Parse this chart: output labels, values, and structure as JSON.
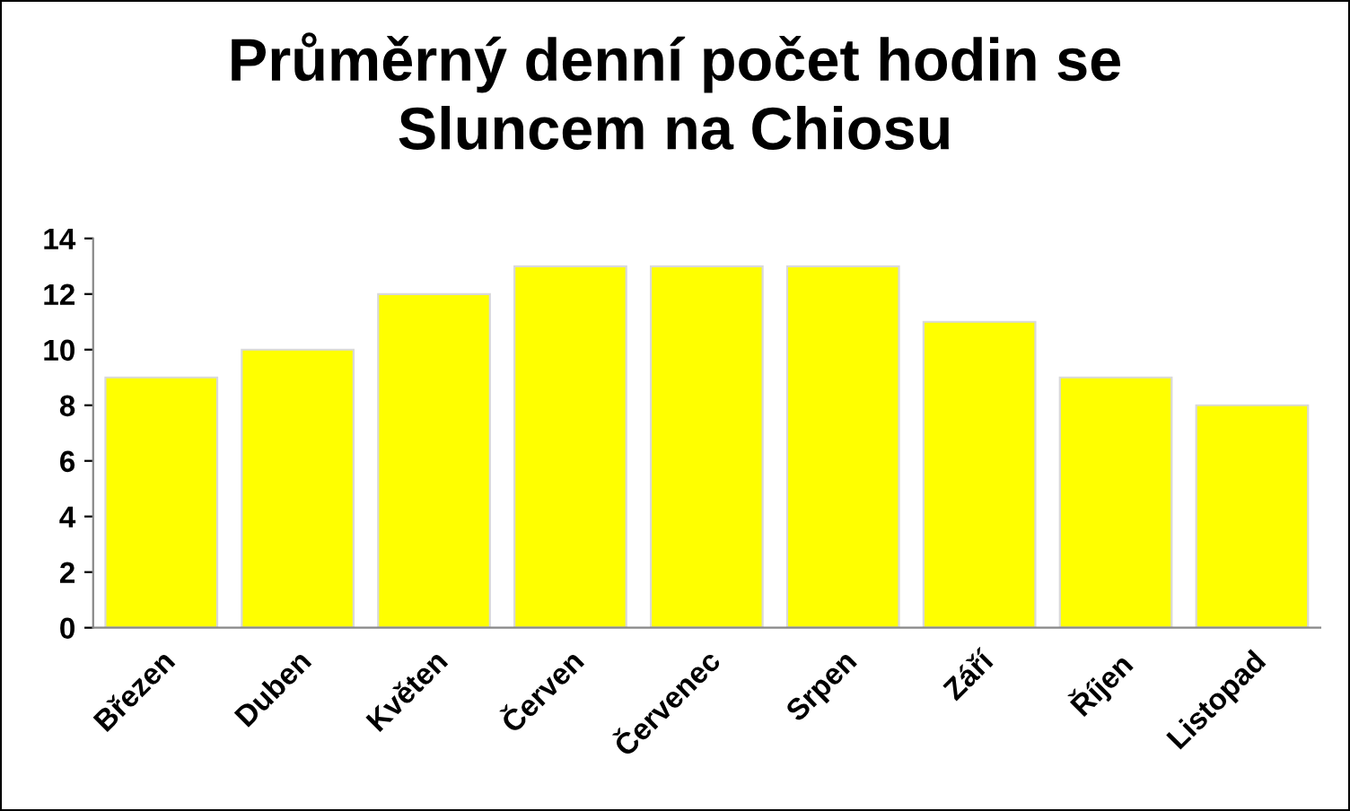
{
  "chart_data": {
    "type": "bar",
    "title": "Průměrný denní počet hodin se\nSluncem na Chiosu",
    "categories": [
      "Březen",
      "Duben",
      "Květen",
      "Červen",
      "Červenec",
      "Srpen",
      "Září",
      "Říjen",
      "Listopad"
    ],
    "values": [
      9,
      10,
      12,
      13,
      13,
      13,
      11,
      9,
      8
    ],
    "color": "#ffff00",
    "ylim": [
      0,
      14
    ],
    "yticks": [
      0,
      2,
      4,
      6,
      8,
      10,
      12,
      14
    ],
    "grid": false,
    "legend": false
  }
}
